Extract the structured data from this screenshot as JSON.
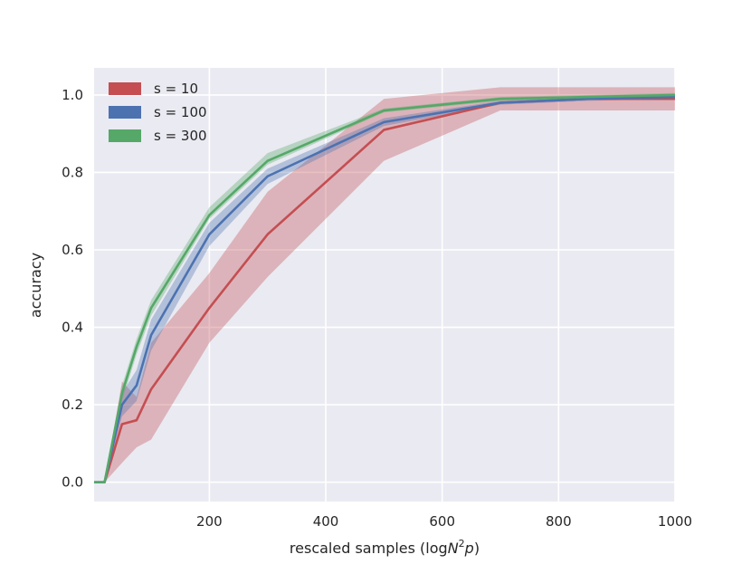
{
  "chart_data": {
    "type": "line",
    "title": "",
    "xlabel": {
      "prefix": "rescaled samples (log",
      "var": "N",
      "sup": "2",
      "var2": "p",
      "suffix": ")"
    },
    "ylabel": "accuracy",
    "xlim": [
      2,
      1000
    ],
    "ylim": [
      -0.05,
      1.07
    ],
    "xticks": [
      200,
      400,
      600,
      800,
      1000
    ],
    "xtick_labels": [
      "200",
      "400",
      "600",
      "800",
      "1000"
    ],
    "yticks": [
      0.0,
      0.2,
      0.4,
      0.6,
      0.8,
      1.0
    ],
    "ytick_labels": [
      "0.0",
      "0.2",
      "0.4",
      "0.6",
      "0.8",
      "1.0"
    ],
    "grid": true,
    "legend_position": "top-left",
    "shaded_bands": true,
    "series": [
      {
        "name": "s = 10",
        "color": "#c44e52",
        "x": [
          2,
          20,
          50,
          75,
          100,
          200,
          300,
          500,
          700,
          850,
          1000
        ],
        "y": [
          0.0,
          0.0,
          0.15,
          0.16,
          0.24,
          0.45,
          0.64,
          0.91,
          0.98,
          0.99,
          0.99
        ],
        "lower": [
          0.0,
          0.0,
          0.05,
          0.09,
          0.11,
          0.36,
          0.53,
          0.83,
          0.96,
          0.96,
          0.96
        ],
        "upper": [
          0.0,
          0.0,
          0.26,
          0.22,
          0.36,
          0.54,
          0.75,
          0.99,
          1.02,
          1.02,
          1.02
        ]
      },
      {
        "name": "s = 100",
        "color": "#4c72b0",
        "x": [
          2,
          20,
          50,
          75,
          100,
          200,
          300,
          500,
          700,
          850,
          1000
        ],
        "y": [
          0.0,
          0.0,
          0.2,
          0.25,
          0.38,
          0.64,
          0.79,
          0.93,
          0.98,
          0.99,
          0.995
        ],
        "lower": [
          0.0,
          0.0,
          0.17,
          0.21,
          0.34,
          0.61,
          0.77,
          0.92,
          0.975,
          0.985,
          0.99
        ],
        "upper": [
          0.0,
          0.0,
          0.23,
          0.29,
          0.42,
          0.67,
          0.81,
          0.94,
          0.985,
          0.995,
          1.0
        ]
      },
      {
        "name": "s = 300",
        "color": "#55a868",
        "x": [
          2,
          20,
          50,
          75,
          100,
          200,
          300,
          500,
          700,
          850,
          1000
        ],
        "y": [
          0.0,
          0.0,
          0.23,
          0.35,
          0.45,
          0.69,
          0.83,
          0.96,
          0.99,
          0.995,
          1.0
        ],
        "lower": [
          0.0,
          0.0,
          0.21,
          0.33,
          0.43,
          0.68,
          0.82,
          0.955,
          0.985,
          0.99,
          0.995
        ],
        "upper": [
          0.0,
          0.0,
          0.25,
          0.37,
          0.47,
          0.71,
          0.85,
          0.965,
          0.995,
          1.0,
          1.005
        ]
      }
    ]
  }
}
